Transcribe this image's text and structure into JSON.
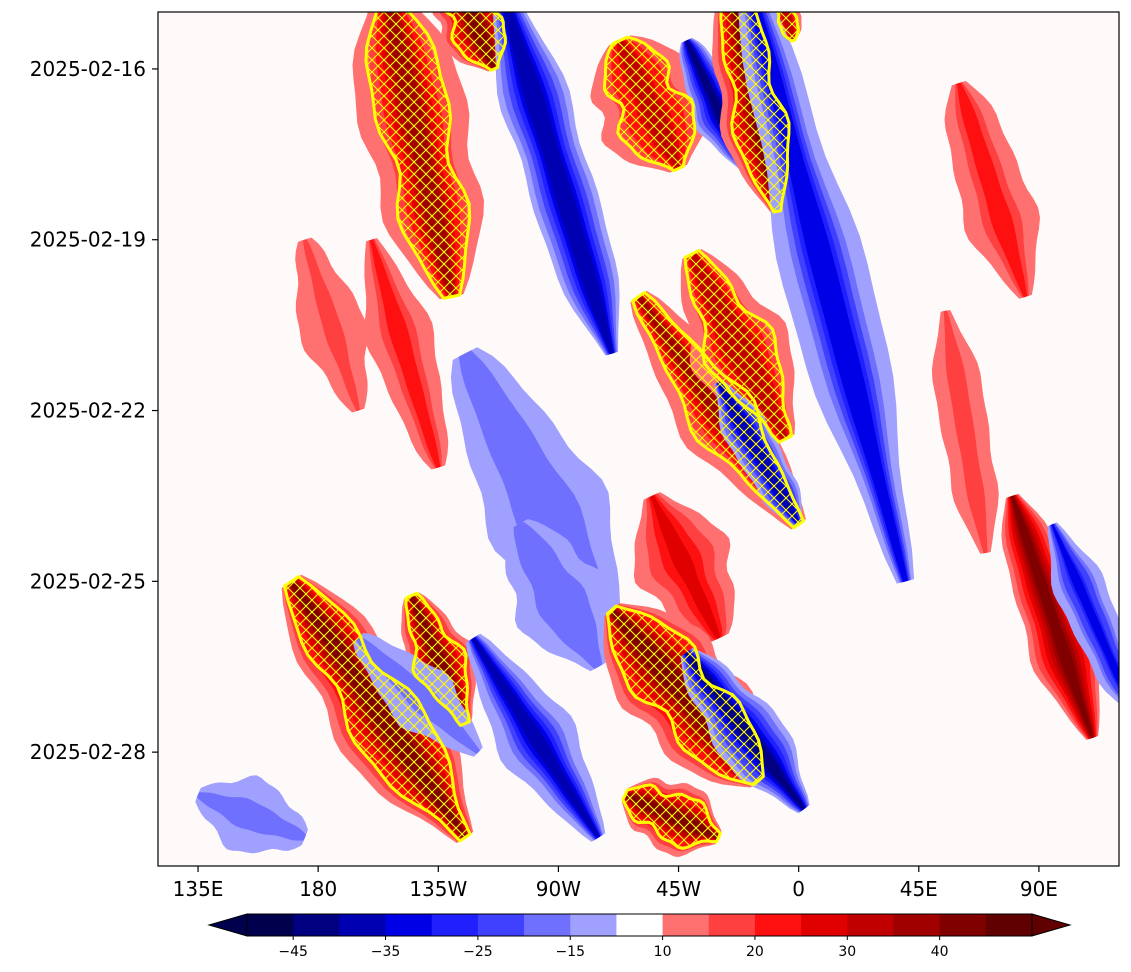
{
  "chart_data": {
    "type": "heatmap",
    "title": "",
    "xlabel": "",
    "ylabel": "",
    "x_ticks": [
      {
        "lon": 135,
        "label": "135E"
      },
      {
        "lon": 180,
        "label": "180"
      },
      {
        "lon": 225,
        "label": "135W"
      },
      {
        "lon": 270,
        "label": "90W"
      },
      {
        "lon": 315,
        "label": "45W"
      },
      {
        "lon": 360,
        "label": "0"
      },
      {
        "lon": 405,
        "label": "45E"
      },
      {
        "lon": 450,
        "label": "90E"
      }
    ],
    "y_ticks": [
      {
        "date": "2025-02-16",
        "label": "2025-02-16"
      },
      {
        "date": "2025-02-19",
        "label": "2025-02-19"
      },
      {
        "date": "2025-02-22",
        "label": "2025-02-22"
      },
      {
        "date": "2025-02-25",
        "label": "2025-02-25"
      },
      {
        "date": "2025-02-28",
        "label": "2025-02-28"
      }
    ],
    "xlim": [
      120,
      480
    ],
    "ylim": [
      "2025-03-02T00:00",
      "2025-02-15T00:00"
    ],
    "colorbar": {
      "levels": [
        -50,
        -45,
        -40,
        -35,
        -30,
        -25,
        -20,
        -15,
        -10,
        10,
        15,
        20,
        25,
        30,
        35,
        40,
        45,
        50
      ],
      "colors": [
        "#00004c",
        "#000080",
        "#0000b3",
        "#0000e6",
        "#2020ff",
        "#4040ff",
        "#7070ff",
        "#a0a0ff",
        "#ffffff",
        "#ff7070",
        "#ff4040",
        "#ff1010",
        "#e00000",
        "#c00000",
        "#a00000",
        "#800000",
        "#600000"
      ],
      "extend": "both",
      "tick_labels": [
        {
          "value": -45,
          "label": "−45"
        },
        {
          "value": -35,
          "label": "−35"
        },
        {
          "value": -25,
          "label": "−25"
        },
        {
          "value": -15,
          "label": "−15"
        },
        {
          "value": 10,
          "label": "10"
        },
        {
          "value": 20,
          "label": "20"
        },
        {
          "value": 30,
          "label": "30"
        },
        {
          "value": 40,
          "label": "40"
        }
      ]
    },
    "contour_color": "#ffff00",
    "hatch": "crosshatch",
    "bands": [
      {
        "lon0": 205,
        "t0": "2025-02-14T12:00",
        "lon1": 230,
        "t1": "2025-02-20T00:00",
        "width": 22,
        "amp": 38,
        "hatch": true
      },
      {
        "lon0": 230,
        "t0": "2025-02-14T06:00",
        "lon1": 246,
        "t1": "2025-02-16T00:00",
        "width": 15,
        "amp": 40,
        "hatch": true
      },
      {
        "lon0": 248,
        "t0": "2025-02-14T12:00",
        "lon1": 290,
        "t1": "2025-02-21T00:00",
        "width": 14,
        "amp": -40,
        "hatch": false
      },
      {
        "lon0": 293,
        "t0": "2025-02-15T12:00",
        "lon1": 315,
        "t1": "2025-02-17T18:00",
        "width": 22,
        "amp": 32,
        "hatch": true
      },
      {
        "lon0": 318,
        "t0": "2025-02-15T12:00",
        "lon1": 340,
        "t1": "2025-02-17T18:00",
        "width": 10,
        "amp": -42,
        "hatch": false
      },
      {
        "lon0": 335,
        "t0": "2025-02-14T12:00",
        "lon1": 352,
        "t1": "2025-02-18T12:00",
        "width": 15,
        "amp": 40,
        "hatch": true
      },
      {
        "lon0": 352,
        "t0": "2025-02-14T12:00",
        "lon1": 358,
        "t1": "2025-02-15T12:00",
        "width": 6,
        "amp": 34,
        "hatch": true
      },
      {
        "lon0": 340,
        "t0": "2025-02-14T06:00",
        "lon1": 400,
        "t1": "2025-02-25T00:00",
        "width": 16,
        "amp": -35,
        "hatch": false
      },
      {
        "lon0": 420,
        "t0": "2025-02-16T06:00",
        "lon1": 445,
        "t1": "2025-02-20T00:00",
        "width": 14,
        "amp": 22,
        "hatch": false
      },
      {
        "lon0": 175,
        "t0": "2025-02-19T00:00",
        "lon1": 195,
        "t1": "2025-02-22T00:00",
        "width": 12,
        "amp": 16,
        "hatch": false
      },
      {
        "lon0": 200,
        "t0": "2025-02-19T00:00",
        "lon1": 225,
        "t1": "2025-02-23T00:00",
        "width": 12,
        "amp": 22,
        "hatch": false
      },
      {
        "lon0": 235,
        "t0": "2025-02-21T00:00",
        "lon1": 290,
        "t1": "2025-02-26T00:00",
        "width": 22,
        "amp": -20,
        "hatch": false
      },
      {
        "lon0": 300,
        "t0": "2025-02-20T00:00",
        "lon1": 360,
        "t1": "2025-02-24T00:00",
        "width": 16,
        "amp": 35,
        "hatch": true
      },
      {
        "lon0": 320,
        "t0": "2025-02-19T06:00",
        "lon1": 355,
        "t1": "2025-02-22T12:00",
        "width": 18,
        "amp": 34,
        "hatch": true
      },
      {
        "lon0": 330,
        "t0": "2025-02-21T12:00",
        "lon1": 360,
        "t1": "2025-02-24T00:00",
        "width": 9,
        "amp": -40,
        "hatch": false
      },
      {
        "lon0": 415,
        "t0": "2025-02-20T06:00",
        "lon1": 430,
        "t1": "2025-02-24T12:00",
        "width": 10,
        "amp": 18,
        "hatch": false
      },
      {
        "lon0": 305,
        "t0": "2025-02-23T12:00",
        "lon1": 330,
        "t1": "2025-02-26T00:00",
        "width": 18,
        "amp": 26,
        "hatch": false
      },
      {
        "lon0": 255,
        "t0": "2025-02-24T00:00",
        "lon1": 285,
        "t1": "2025-02-26T12:00",
        "width": 18,
        "amp": -20,
        "hatch": false
      },
      {
        "lon0": 440,
        "t0": "2025-02-23T12:00",
        "lon1": 470,
        "t1": "2025-02-27T18:00",
        "width": 13,
        "amp": 42,
        "hatch": false
      },
      {
        "lon0": 455,
        "t0": "2025-02-24T00:00",
        "lon1": 485,
        "t1": "2025-02-27T06:00",
        "width": 10,
        "amp": -32,
        "hatch": false
      },
      {
        "lon0": 170,
        "t0": "2025-02-25T00:00",
        "lon1": 235,
        "t1": "2025-03-01T12:00",
        "width": 20,
        "amp": 40,
        "hatch": true
      },
      {
        "lon0": 215,
        "t0": "2025-02-25T06:00",
        "lon1": 235,
        "t1": "2025-02-27T12:00",
        "width": 13,
        "amp": 42,
        "hatch": true
      },
      {
        "lon0": 238,
        "t0": "2025-02-26T00:00",
        "lon1": 285,
        "t1": "2025-03-01T12:00",
        "width": 14,
        "amp": -38,
        "hatch": false
      },
      {
        "lon0": 290,
        "t0": "2025-02-25T12:00",
        "lon1": 345,
        "t1": "2025-02-28T12:00",
        "width": 22,
        "amp": 40,
        "hatch": true
      },
      {
        "lon0": 318,
        "t0": "2025-02-26T06:00",
        "lon1": 362,
        "t1": "2025-02-29T00:00",
        "width": 13,
        "amp": -42,
        "hatch": false
      },
      {
        "lon0": 295,
        "t0": "2025-02-28T18:00",
        "lon1": 330,
        "t1": "2025-03-01T12:00",
        "width": 14,
        "amp": 40,
        "hatch": true
      },
      {
        "lon0": 195,
        "t0": "2025-02-26T00:00",
        "lon1": 240,
        "t1": "2025-02-28T00:00",
        "width": 12,
        "amp": -18,
        "hatch": false
      },
      {
        "lon0": 135,
        "t0": "2025-02-28T18:00",
        "lon1": 175,
        "t1": "2025-03-01T12:00",
        "width": 14,
        "amp": -18,
        "hatch": false
      }
    ]
  }
}
